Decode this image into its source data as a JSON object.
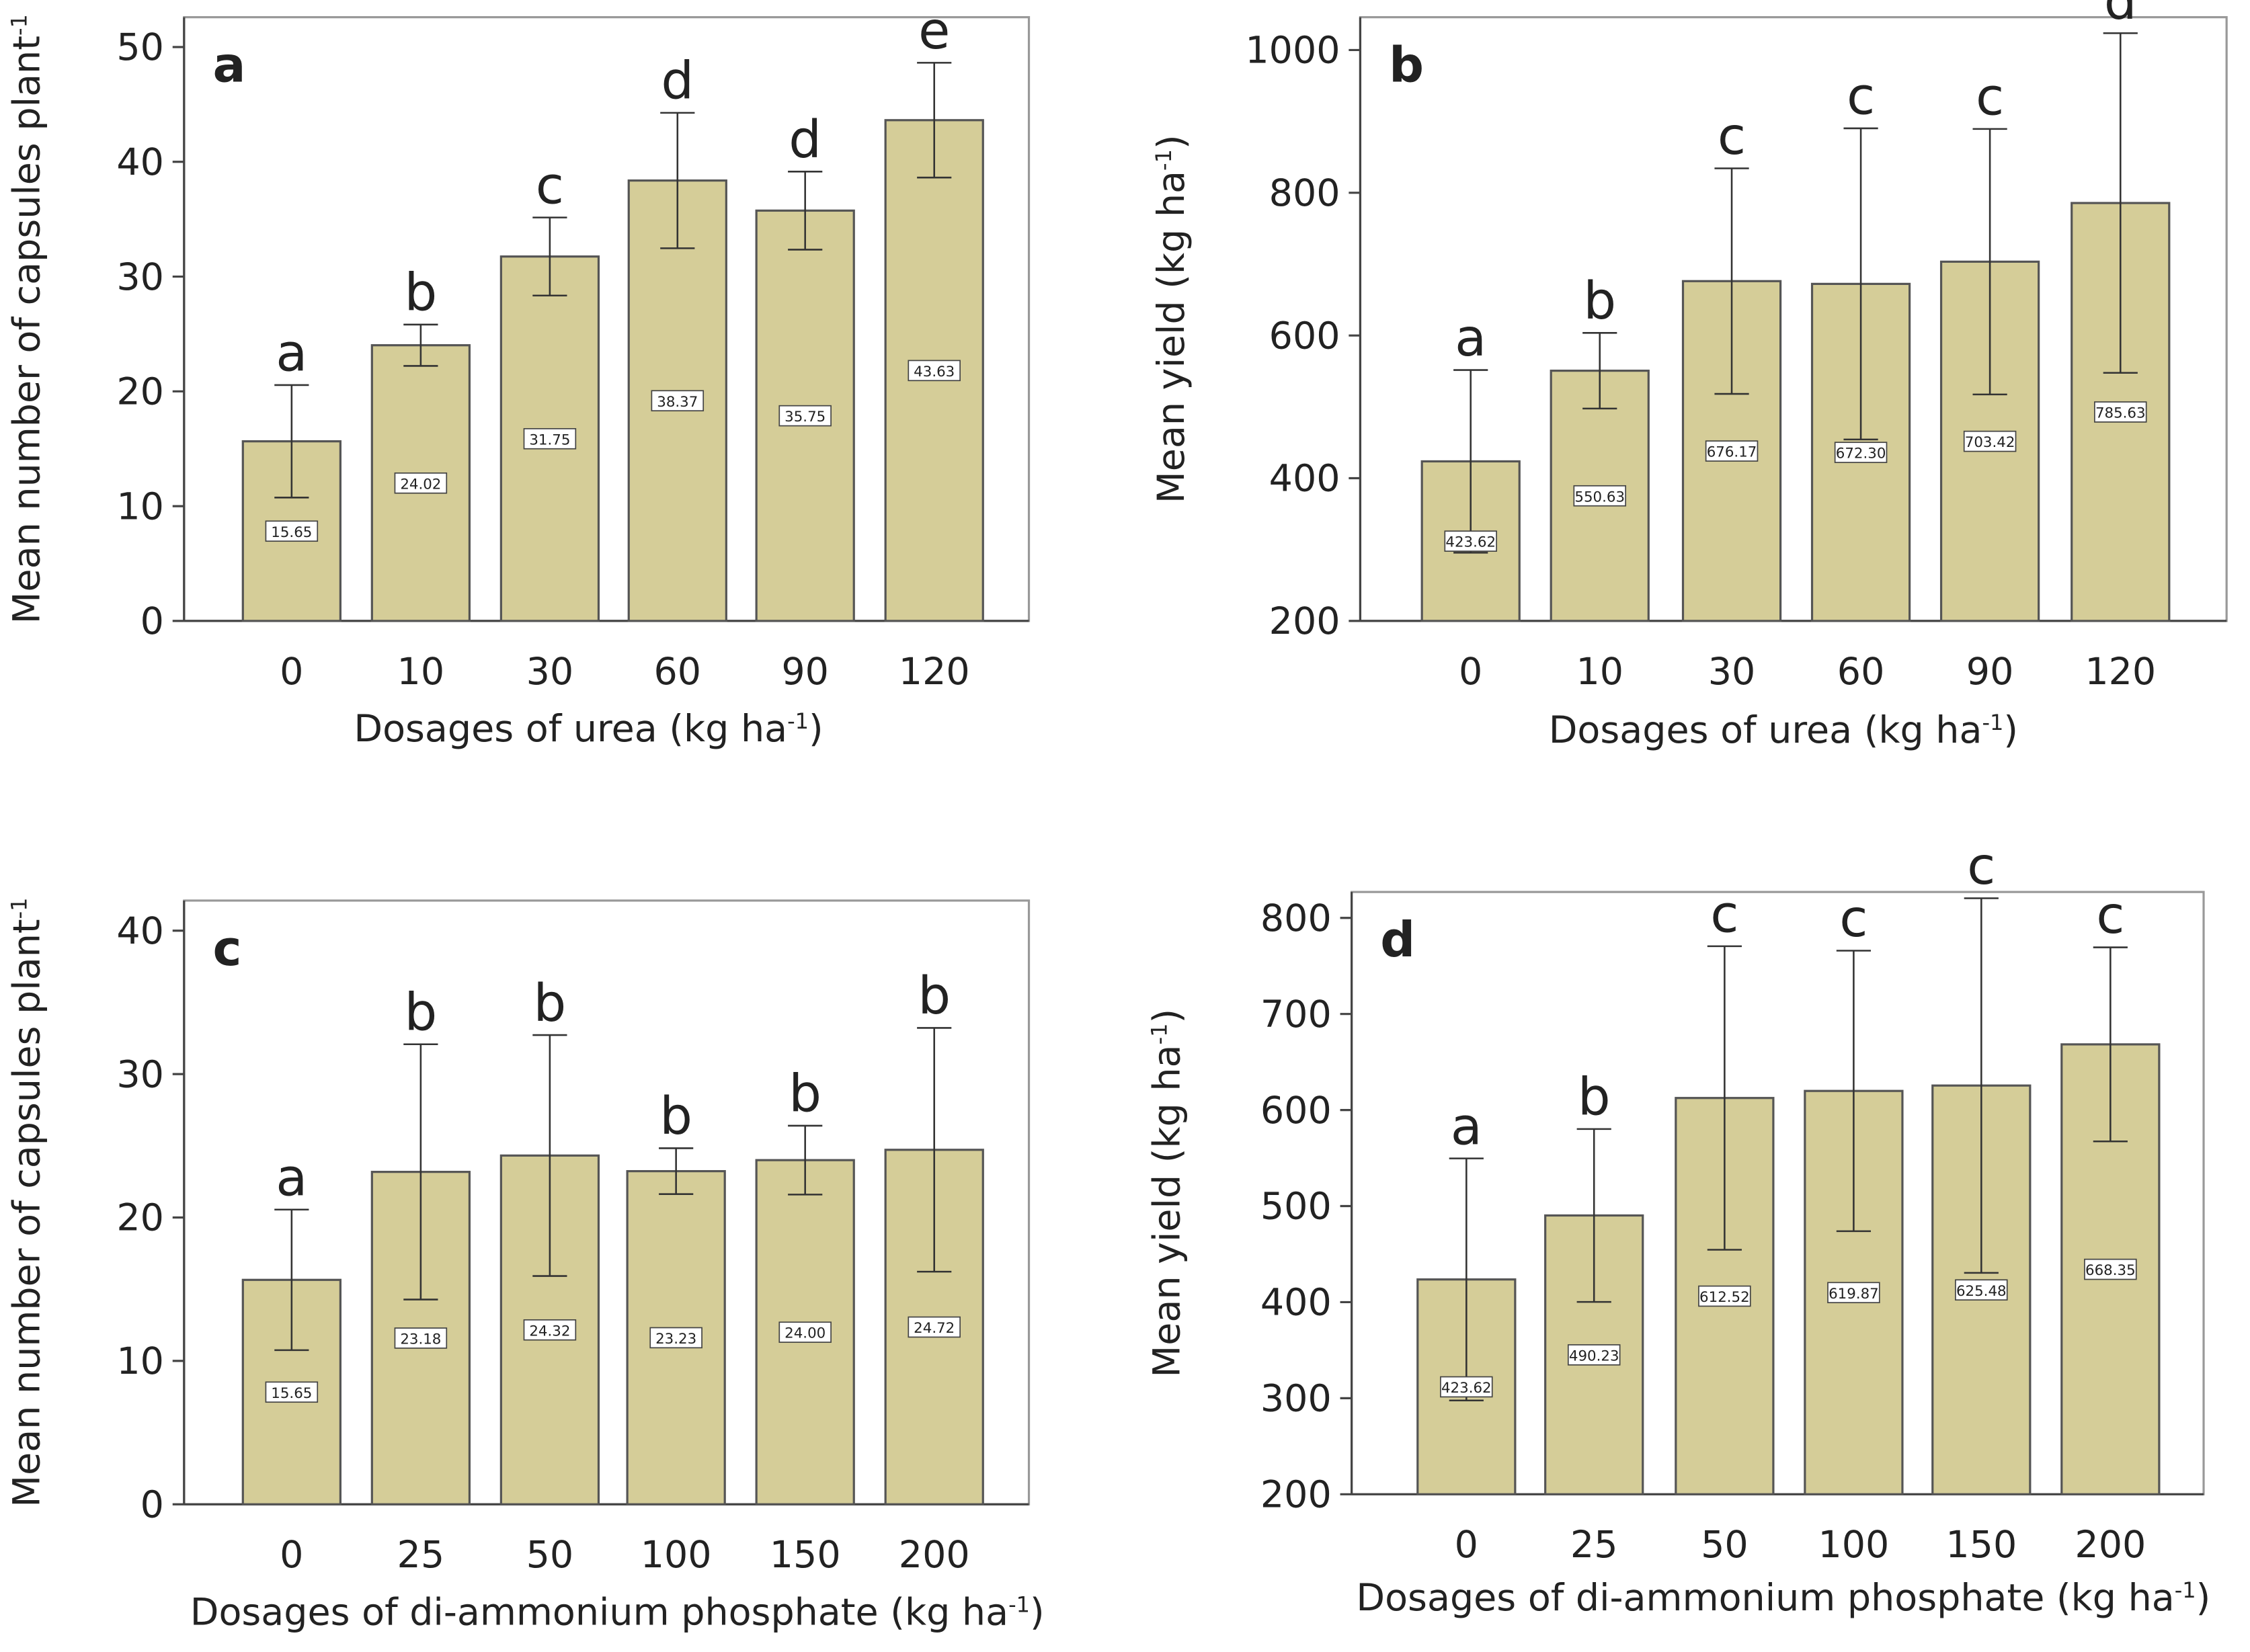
{
  "chart_data": [
    {
      "type": "bar",
      "panel_label": "a",
      "color": "#d5cd98",
      "categories": [
        "0",
        "10",
        "30",
        "60",
        "90",
        "120"
      ],
      "values": [
        15.65,
        24.02,
        31.75,
        38.37,
        35.75,
        43.63
      ],
      "value_labels": [
        "15.65",
        "24.02",
        "31.75",
        "38.37",
        "35.75",
        "43.63"
      ],
      "errors": [
        4.9,
        1.8,
        3.4,
        5.9,
        3.4,
        5.0
      ],
      "letters": [
        "a",
        "b",
        "c",
        "d",
        "d",
        "e"
      ],
      "ylim": [
        0,
        52.6
      ],
      "yticks": [
        0,
        10,
        20,
        30,
        40,
        50
      ],
      "xlabel_parts": [
        "Dosages of urea (kg ha",
        "-1",
        ")"
      ],
      "ylabel_parts": [
        "Mean number of capsules plant",
        "-1",
        ""
      ]
    },
    {
      "type": "bar",
      "panel_label": "b",
      "color": "#d5cd98",
      "categories": [
        "0",
        "10",
        "30",
        "60",
        "90",
        "120"
      ],
      "values": [
        423.62,
        550.63,
        676.17,
        672.3,
        703.42,
        785.63
      ],
      "value_labels": [
        "423.62",
        "550.63",
        "676.17",
        "672.30",
        "703.42",
        "785.63"
      ],
      "errors": [
        128,
        53,
        158,
        218,
        186,
        238
      ],
      "letters": [
        "a",
        "b",
        "c",
        "c",
        "c",
        "d"
      ],
      "ylim": [
        200,
        1046
      ],
      "yticks": [
        200,
        400,
        600,
        800,
        1000
      ],
      "xlabel_parts": [
        "Dosages of urea (kg ha",
        "-1",
        ")"
      ],
      "ylabel_parts": [
        "Mean yield (kg ha",
        "-1",
        ")"
      ]
    },
    {
      "type": "bar",
      "panel_label": "c",
      "color": "#d5cd98",
      "categories": [
        "0",
        "25",
        "50",
        "100",
        "150",
        "200"
      ],
      "values": [
        15.65,
        23.18,
        24.32,
        23.23,
        24.0,
        24.72
      ],
      "value_labels": [
        "15.65",
        "23.18",
        "24.32",
        "23.23",
        "24.00",
        "24.72"
      ],
      "errors": [
        4.9,
        8.9,
        8.4,
        1.6,
        2.4,
        8.5
      ],
      "letters": [
        "a",
        "b",
        "b",
        "b",
        "b",
        "b"
      ],
      "ylim": [
        0,
        42.1
      ],
      "yticks": [
        0,
        10,
        20,
        30,
        40
      ],
      "xlabel_parts": [
        "Dosages of di-ammonium phosphate (kg ha",
        "-1",
        ")"
      ],
      "ylabel_parts": [
        "Mean number of capsules plant",
        "-1",
        ""
      ]
    },
    {
      "type": "bar",
      "panel_label": "d",
      "color": "#d5cd98",
      "categories": [
        "0",
        "25",
        "50",
        "100",
        "150",
        "200"
      ],
      "values": [
        423.62,
        490.23,
        612.52,
        619.87,
        625.48,
        668.35
      ],
      "value_labels": [
        "423.62",
        "490.23",
        "612.52",
        "619.87",
        "625.48",
        "668.35"
      ],
      "errors": [
        126,
        90,
        158,
        146,
        195,
        101
      ],
      "letters": [
        "a",
        "b",
        "c",
        "c",
        "c",
        "c"
      ],
      "ylim": [
        200,
        827
      ],
      "yticks": [
        200,
        300,
        400,
        500,
        600,
        700,
        800
      ],
      "xlabel_parts": [
        "Dosages of di-ammonium phosphate (kg ha",
        "-1",
        ")"
      ],
      "ylabel_parts": [
        "Mean yield (kg ha",
        "-1",
        ")"
      ]
    }
  ]
}
